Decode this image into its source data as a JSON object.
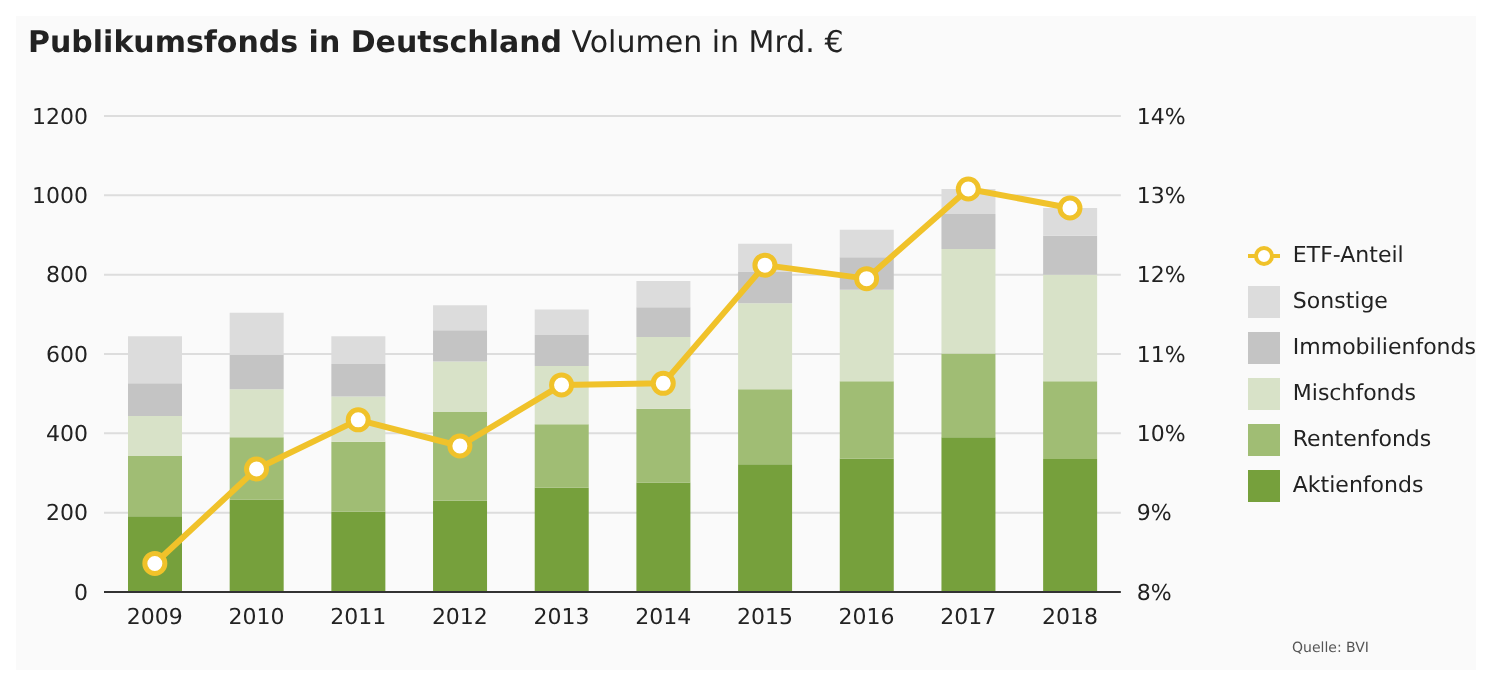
{
  "chart_data": {
    "type": "bar",
    "title": "Publikumsfonds in Deutschland",
    "subtitle": "Volumen in Mrd. €",
    "annotations": [
      "Quelle: BVI"
    ],
    "categories": [
      "2009",
      "2010",
      "2011",
      "2012",
      "2013",
      "2014",
      "2015",
      "2016",
      "2017",
      "2018"
    ],
    "stacked": true,
    "series": [
      {
        "name": "Aktienfonds",
        "color": "#76a03c",
        "values": [
          191,
          233,
          202,
          230,
          263,
          276,
          322,
          336,
          390,
          335
        ]
      },
      {
        "name": "Rentenfonds",
        "color": "#a0bd74",
        "values": [
          152,
          157,
          177,
          224,
          160,
          186,
          189,
          195,
          211,
          196
        ]
      },
      {
        "name": "Mischfonds",
        "color": "#d8e2c8",
        "values": [
          101,
          121,
          114,
          127,
          147,
          181,
          217,
          231,
          264,
          269
        ]
      },
      {
        "name": "Immobilienfonds",
        "color": "#c4c4c4",
        "values": [
          82,
          87,
          82,
          79,
          78,
          75,
          80,
          82,
          88,
          98
        ]
      },
      {
        "name": "Sonstige",
        "color": "#dcdcdc",
        "values": [
          119,
          106,
          70,
          63,
          64,
          66,
          70,
          69,
          63,
          70
        ]
      },
      {
        "name": "ETF-Anteil",
        "type": "line",
        "axis": "y2",
        "color": "#f0c22a",
        "marker": "circle",
        "values": [
          8.36,
          9.55,
          10.17,
          9.84,
          10.61,
          10.63,
          12.12,
          11.95,
          13.08,
          12.84
        ]
      }
    ],
    "ylim": [
      0,
      1200
    ],
    "yticks": [
      0,
      200,
      400,
      600,
      800,
      1000,
      1200
    ],
    "y2lim": [
      8,
      14
    ],
    "y2ticks": [
      {
        "value": 8,
        "label": "8%"
      },
      {
        "value": 9,
        "label": "9%"
      },
      {
        "value": 10,
        "label": "10%"
      },
      {
        "value": 11,
        "label": "11%"
      },
      {
        "value": 12,
        "label": "12%"
      },
      {
        "value": 13,
        "label": "13%"
      },
      {
        "value": 14,
        "label": "14%"
      }
    ],
    "grid": "y",
    "legend": "right"
  }
}
